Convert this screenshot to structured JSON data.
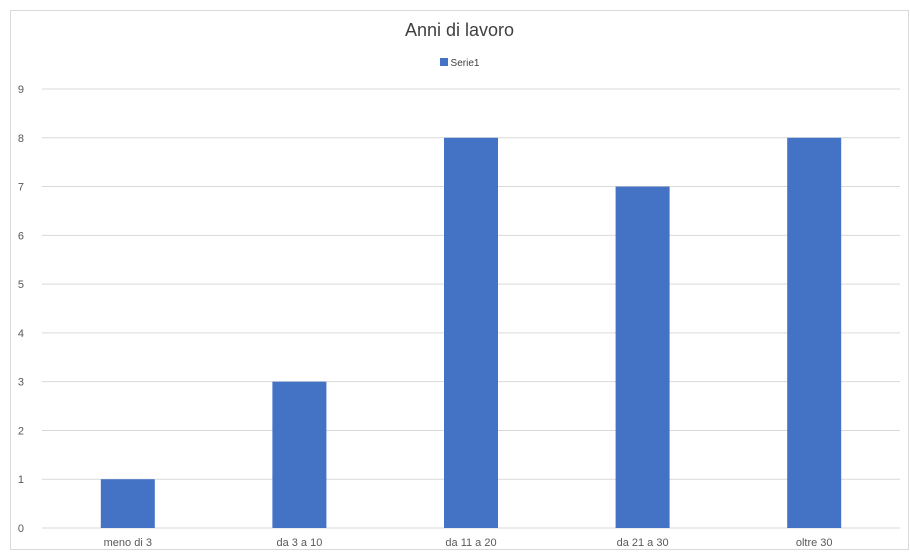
{
  "chart_data": {
    "type": "bar",
    "title": "Anni di lavoro",
    "categories": [
      "meno di 3",
      "da 3 a 10",
      "da 11 a 20",
      "da 21 a 30",
      "oltre 30"
    ],
    "series": [
      {
        "name": "Serie1",
        "values": [
          1,
          3,
          8,
          7,
          8
        ],
        "color": "#4472c4"
      }
    ],
    "ylim": [
      0,
      9
    ],
    "yticks": [
      "0",
      "1",
      "2",
      "3",
      "4",
      "5",
      "6",
      "7",
      "8",
      "9"
    ],
    "grid": true,
    "legend_position": "top",
    "gridline_color": "#d9d9d9"
  }
}
